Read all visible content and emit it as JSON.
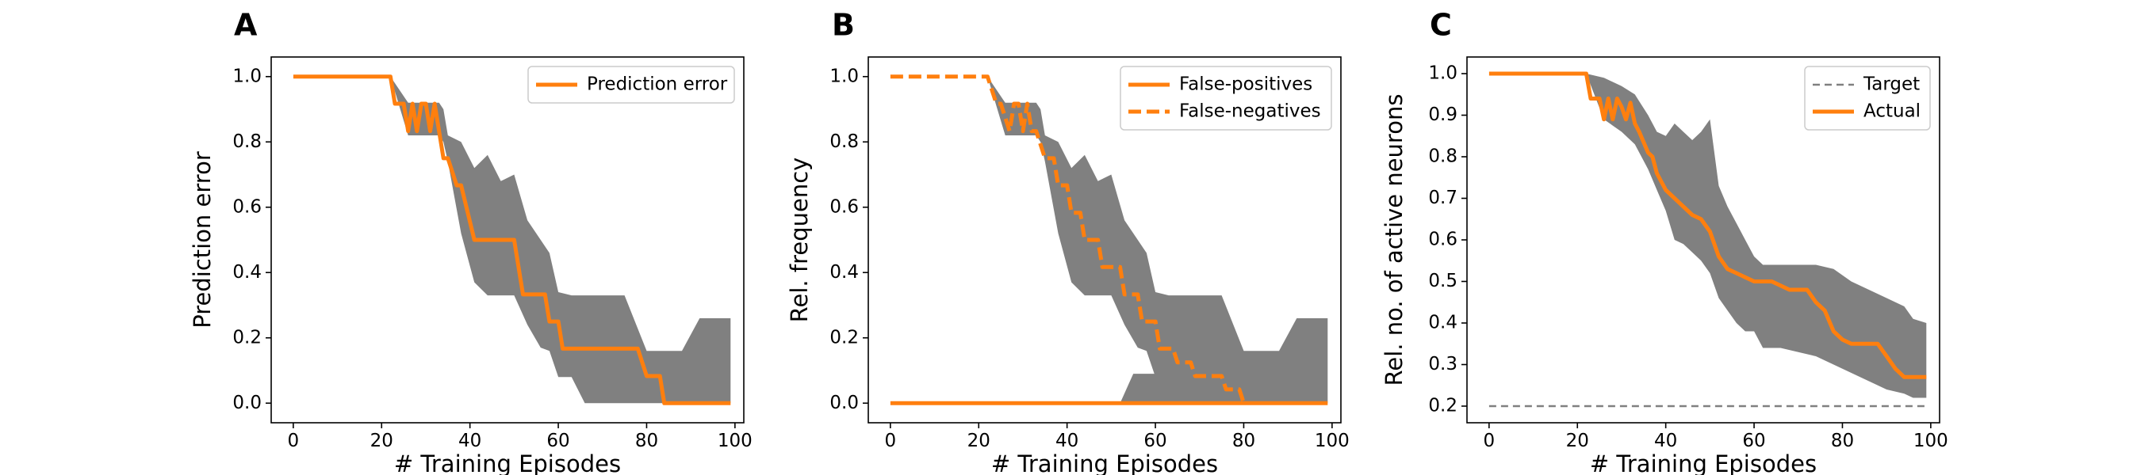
{
  "colors": {
    "orange": "#ff7f0e",
    "band": "#808080",
    "target": "#808080"
  },
  "chart_data": [
    {
      "panel": "A",
      "type": "line",
      "xlabel": "# Training Episodes",
      "ylabel": "Prediction error",
      "xlim": [
        -5,
        102
      ],
      "ylim": [
        -0.06,
        1.06
      ],
      "xticks": [
        0,
        20,
        40,
        60,
        80,
        100
      ],
      "yticks": [
        0.0,
        0.2,
        0.4,
        0.6,
        0.8,
        1.0
      ],
      "ytick_labels": [
        "0.0",
        "0.2",
        "0.4",
        "0.6",
        "0.8",
        "1.0"
      ],
      "legend": "top-right",
      "grid": false,
      "series": [
        {
          "name": "Prediction error",
          "color": "#ff7f0e",
          "dash": "solid",
          "x": [
            0,
            22,
            23,
            25,
            26,
            27,
            28,
            29,
            30,
            31,
            32,
            33,
            34,
            35,
            37,
            38,
            41,
            50,
            52,
            57,
            58,
            60,
            61,
            78,
            80,
            83,
            84,
            99
          ],
          "y": [
            1.0,
            1.0,
            0.917,
            0.917,
            0.833,
            0.917,
            0.833,
            0.917,
            0.917,
            0.833,
            0.917,
            0.833,
            0.75,
            0.75,
            0.667,
            0.667,
            0.5,
            0.5,
            0.333,
            0.333,
            0.25,
            0.25,
            0.167,
            0.167,
            0.083,
            0.083,
            0.0,
            0.0
          ]
        }
      ],
      "bands": [
        {
          "x": [
            22,
            26,
            30,
            33,
            34,
            35,
            38,
            41,
            44,
            47,
            50,
            53,
            56,
            58,
            60,
            63,
            66,
            70,
            75,
            80,
            84,
            88,
            92,
            99
          ],
          "upper": [
            1.0,
            0.92,
            0.92,
            0.92,
            0.9,
            0.82,
            0.8,
            0.72,
            0.76,
            0.68,
            0.7,
            0.56,
            0.5,
            0.46,
            0.34,
            0.33,
            0.33,
            0.33,
            0.33,
            0.16,
            0.16,
            0.16,
            0.26,
            0.26
          ],
          "lower": [
            1.0,
            0.82,
            0.82,
            0.82,
            0.8,
            0.74,
            0.52,
            0.37,
            0.33,
            0.33,
            0.33,
            0.24,
            0.17,
            0.16,
            0.08,
            0.08,
            0.0,
            0.0,
            0.0,
            0.0,
            0.0,
            0.0,
            0.0,
            0.0
          ]
        }
      ]
    },
    {
      "panel": "B",
      "type": "line",
      "xlabel": "# Training Episodes",
      "ylabel": "Rel. frequency",
      "xlim": [
        -5,
        102
      ],
      "ylim": [
        -0.06,
        1.06
      ],
      "xticks": [
        0,
        20,
        40,
        60,
        80,
        100
      ],
      "yticks": [
        0.0,
        0.2,
        0.4,
        0.6,
        0.8,
        1.0
      ],
      "ytick_labels": [
        "0.0",
        "0.2",
        "0.4",
        "0.6",
        "0.8",
        "1.0"
      ],
      "legend": "top-right",
      "grid": false,
      "series": [
        {
          "name": "False-positives",
          "color": "#ff7f0e",
          "dash": "solid",
          "x": [
            0,
            99
          ],
          "y": [
            0.0,
            0.0
          ]
        },
        {
          "name": "False-negatives",
          "color": "#ff7f0e",
          "dash": "dashed",
          "x": [
            0,
            22,
            24,
            25,
            27,
            28,
            29,
            30,
            31,
            32,
            33,
            35,
            37,
            38,
            40,
            41,
            43,
            44,
            47,
            48,
            52,
            53,
            56,
            57,
            60,
            61,
            64,
            65,
            68,
            69,
            72,
            73,
            75,
            76,
            79,
            80
          ],
          "y": [
            1.0,
            1.0,
            0.917,
            0.917,
            0.833,
            0.917,
            0.917,
            0.833,
            0.917,
            0.833,
            0.833,
            0.75,
            0.75,
            0.667,
            0.667,
            0.583,
            0.583,
            0.5,
            0.5,
            0.417,
            0.417,
            0.333,
            0.333,
            0.25,
            0.25,
            0.167,
            0.167,
            0.125,
            0.125,
            0.083,
            0.083,
            0.083,
            0.083,
            0.042,
            0.042,
            0.0
          ]
        }
      ],
      "bands": [
        {
          "x": [
            22,
            26,
            30,
            33,
            34,
            35,
            38,
            41,
            44,
            47,
            50,
            53,
            56,
            58,
            60,
            63,
            66,
            70,
            75,
            80,
            84,
            88,
            92,
            99
          ],
          "upper": [
            1.0,
            0.92,
            0.92,
            0.92,
            0.9,
            0.82,
            0.8,
            0.72,
            0.76,
            0.68,
            0.7,
            0.56,
            0.5,
            0.46,
            0.34,
            0.33,
            0.33,
            0.33,
            0.33,
            0.16,
            0.16,
            0.16,
            0.26,
            0.26
          ],
          "lower": [
            1.0,
            0.82,
            0.82,
            0.82,
            0.8,
            0.74,
            0.52,
            0.37,
            0.33,
            0.33,
            0.33,
            0.24,
            0.17,
            0.16,
            0.08,
            0.08,
            0.0,
            0.0,
            0.0,
            0.0,
            0.0,
            0.0,
            0.0,
            0.0
          ]
        },
        {
          "x": [
            52,
            53,
            54,
            55,
            60,
            65,
            70,
            75,
            80
          ],
          "upper": [
            0.0,
            0.03,
            0.06,
            0.09,
            0.09,
            0.09,
            0.08,
            0.05,
            0.0
          ],
          "lower": [
            0.0,
            0.0,
            0.0,
            0.0,
            0.0,
            0.0,
            0.0,
            0.0,
            0.0
          ]
        }
      ]
    },
    {
      "panel": "C",
      "type": "line",
      "xlabel": "# Training Episodes",
      "ylabel": "Rel. no. of active neurons",
      "xlim": [
        -5,
        102
      ],
      "ylim": [
        0.16,
        1.04
      ],
      "xticks": [
        0,
        20,
        40,
        60,
        80,
        100
      ],
      "yticks": [
        0.2,
        0.3,
        0.4,
        0.5,
        0.6,
        0.7,
        0.8,
        0.9,
        1.0
      ],
      "ytick_labels": [
        "0.2",
        "0.3",
        "0.4",
        "0.5",
        "0.6",
        "0.7",
        "0.8",
        "0.9",
        "1.0"
      ],
      "legend": "top-right",
      "grid": false,
      "series": [
        {
          "name": "Target",
          "color": "#808080",
          "dash": "dashed",
          "x": [
            0,
            99
          ],
          "y": [
            0.2,
            0.2
          ]
        },
        {
          "name": "Actual",
          "color": "#ff7f0e",
          "dash": "solid",
          "x": [
            0,
            22,
            23,
            25,
            26,
            27,
            28,
            29,
            30,
            31,
            32,
            33,
            34,
            36,
            37,
            38,
            39,
            40,
            42,
            44,
            46,
            48,
            50,
            52,
            54,
            56,
            58,
            60,
            62,
            64,
            66,
            68,
            70,
            72,
            74,
            76,
            78,
            80,
            82,
            84,
            86,
            88,
            90,
            92,
            94,
            96,
            99
          ],
          "y": [
            1.0,
            1.0,
            0.94,
            0.94,
            0.89,
            0.94,
            0.89,
            0.94,
            0.92,
            0.89,
            0.93,
            0.88,
            0.86,
            0.81,
            0.8,
            0.76,
            0.74,
            0.72,
            0.7,
            0.68,
            0.66,
            0.65,
            0.62,
            0.56,
            0.53,
            0.52,
            0.51,
            0.5,
            0.5,
            0.5,
            0.49,
            0.48,
            0.48,
            0.48,
            0.45,
            0.43,
            0.38,
            0.36,
            0.35,
            0.35,
            0.35,
            0.35,
            0.32,
            0.29,
            0.27,
            0.27,
            0.27
          ]
        }
      ],
      "bands": [
        {
          "x": [
            22,
            26,
            30,
            33,
            36,
            38,
            40,
            42,
            44,
            46,
            48,
            50,
            52,
            54,
            56,
            58,
            60,
            62,
            64,
            66,
            70,
            74,
            78,
            82,
            86,
            90,
            94,
            96,
            99
          ],
          "upper": [
            1.0,
            0.99,
            0.97,
            0.95,
            0.9,
            0.86,
            0.85,
            0.88,
            0.86,
            0.84,
            0.86,
            0.89,
            0.73,
            0.68,
            0.64,
            0.6,
            0.56,
            0.54,
            0.54,
            0.54,
            0.54,
            0.54,
            0.53,
            0.5,
            0.48,
            0.46,
            0.44,
            0.41,
            0.4
          ],
          "lower": [
            1.0,
            0.89,
            0.86,
            0.83,
            0.77,
            0.72,
            0.67,
            0.6,
            0.59,
            0.57,
            0.55,
            0.52,
            0.46,
            0.43,
            0.4,
            0.38,
            0.38,
            0.34,
            0.34,
            0.34,
            0.33,
            0.32,
            0.3,
            0.28,
            0.26,
            0.24,
            0.23,
            0.22,
            0.22
          ]
        }
      ]
    }
  ]
}
